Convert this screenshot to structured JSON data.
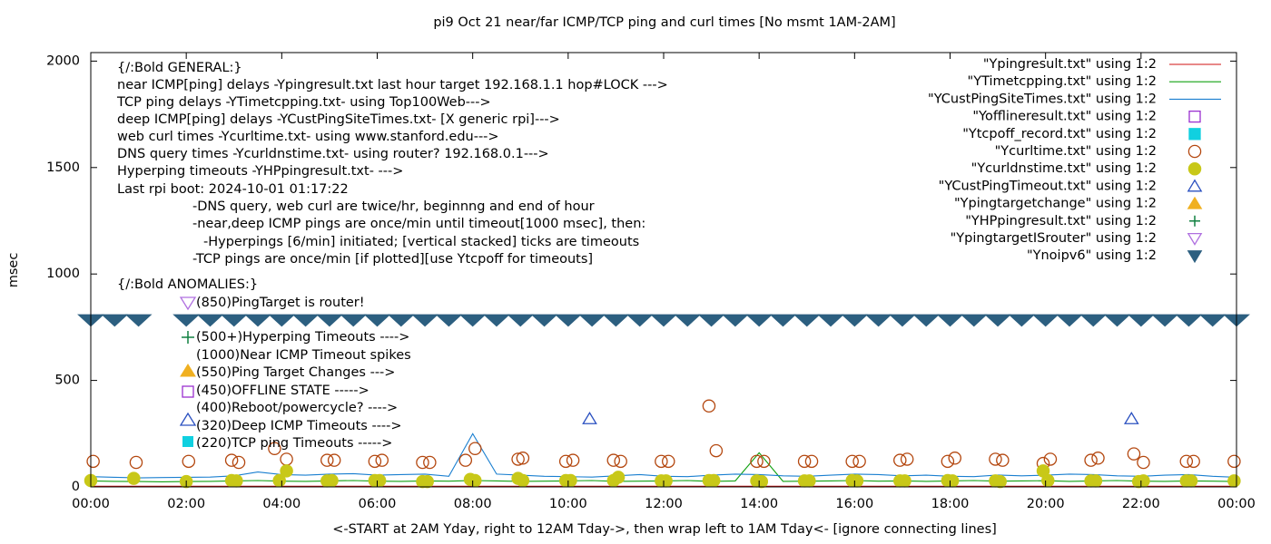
{
  "chart_data": {
    "type": "line",
    "title": "pi9 Oct 21  near/far ICMP/TCP ping and curl times [No msmt 1AM-2AM]",
    "x_label": "<-START at 2AM Yday, right to 12AM Tday->, then wrap left to 1AM Tday<- [ignore connecting lines]",
    "y_label": "msec",
    "xlim": [
      0,
      24
    ],
    "ylim": [
      0,
      2040
    ],
    "xticks": [
      {
        "value": 0,
        "label": "00:00"
      },
      {
        "value": 2,
        "label": "02:00"
      },
      {
        "value": 4,
        "label": "04:00"
      },
      {
        "value": 6,
        "label": "06:00"
      },
      {
        "value": 8,
        "label": "08:00"
      },
      {
        "value": 10,
        "label": "10:00"
      },
      {
        "value": 12,
        "label": "12:00"
      },
      {
        "value": 14,
        "label": "14:00"
      },
      {
        "value": 16,
        "label": "16:00"
      },
      {
        "value": 18,
        "label": "18:00"
      },
      {
        "value": 20,
        "label": "20:00"
      },
      {
        "value": 22,
        "label": "22:00"
      },
      {
        "value": 24,
        "label": "00:00"
      }
    ],
    "yticks": [
      0,
      500,
      1000,
      1500,
      2000
    ],
    "grid": false,
    "legend": "top-right",
    "annotations": [
      "{/:Bold GENERAL:}",
      "near ICMP[ping] delays -Ypingresult.txt last hour target 192.168.1.1 hop#LOCK --->",
      "TCP ping delays -YTimetcpping.txt- using Top100Web--->",
      "deep ICMP[ping] delays -YCustPingSiteTimes.txt- [X generic rpi]--->",
      "web curl times -Ycurltime.txt- using www.stanford.edu--->",
      "DNS query times -Ycurldnstime.txt- using router? 192.168.0.1--->",
      "Hyperping timeouts -YHPpingresult.txt- --->",
      "Last rpi boot: 2024-10-01 01:17:22",
      "-DNS query, web curl are twice/hr, beginnng and end of hour",
      "-near,deep ICMP pings are once/min until timeout[1000 msec], then:",
      "-Hyperpings [6/min] initiated; [vertical stacked] ticks are timeouts",
      "-TCP pings are once/min [if plotted][use Ytcpoff for timeouts]",
      "{/:Bold ANOMALIES:}",
      "(850)PingTarget is router!",
      "(500+)Hyperping Timeouts ---->",
      "(1000)Near ICMP Timeout spikes",
      "(550)Ping Target Changes --->",
      "(450)OFFLINE STATE ----->",
      "(400)Reboot/powercycle? ---->",
      "(320)Deep ICMP Timeouts ---->",
      "(220)TCP ping Timeouts ----->"
    ],
    "series": [
      {
        "name": "\"Ypingresult.txt\" using 1:2",
        "style": "line",
        "color": "#d01010",
        "x": [
          0,
          24
        ],
        "values": [
          3,
          3
        ]
      },
      {
        "name": "\"YTimetcpping.txt\" using 1:2",
        "style": "line",
        "color": "#10a010",
        "x": [
          0,
          0.5,
          1,
          1.5,
          2,
          2.5,
          3,
          3.5,
          4,
          4.5,
          5,
          5.5,
          6,
          6.5,
          7,
          7.5,
          8,
          8.5,
          9,
          9.5,
          10,
          10.5,
          11,
          11.5,
          12,
          12.5,
          13,
          13.5,
          14,
          14.5,
          15,
          15.5,
          16,
          16.5,
          17,
          17.5,
          18,
          18.5,
          19,
          19.5,
          20,
          20.5,
          21,
          21.5,
          22,
          22.5,
          23,
          23.5,
          24
        ],
        "values": [
          28,
          26,
          25,
          24,
          25,
          26,
          28,
          30,
          27,
          26,
          28,
          30,
          27,
          26,
          28,
          27,
          30,
          28,
          26,
          27,
          28,
          30,
          26,
          27,
          28,
          30,
          26,
          28,
          160,
          26,
          27,
          28,
          30,
          27,
          28,
          26,
          28,
          30,
          27,
          28,
          29,
          26,
          28,
          30,
          27,
          26,
          28,
          27,
          25
        ]
      },
      {
        "name": "\"YCustPingSiteTimes.txt\" using 1:2",
        "style": "line",
        "color": "#1a7fd0",
        "x": [
          0,
          0.5,
          1,
          1.5,
          2,
          2.5,
          3,
          3.5,
          4,
          4.5,
          5,
          5.5,
          6,
          6.5,
          7,
          7.5,
          8,
          8.5,
          9,
          9.5,
          10,
          10.5,
          11,
          11.5,
          12,
          12.5,
          13,
          13.5,
          14,
          14.5,
          15,
          15.5,
          16,
          16.5,
          17,
          17.5,
          18,
          18.5,
          19,
          19.5,
          20,
          20.5,
          21,
          21.5,
          22,
          22.5,
          23,
          23.5,
          24
        ],
        "values": [
          48,
          45,
          42,
          44,
          45,
          46,
          52,
          70,
          58,
          55,
          60,
          62,
          55,
          58,
          60,
          50,
          250,
          60,
          55,
          50,
          48,
          46,
          52,
          58,
          50,
          48,
          55,
          60,
          58,
          52,
          50,
          55,
          60,
          58,
          52,
          55,
          50,
          48,
          56,
          52,
          55,
          60,
          58,
          52,
          50,
          55,
          58,
          50,
          45
        ]
      },
      {
        "name": "\"Yofflineresult.txt\" using 1:2",
        "style": "marker",
        "marker": "square",
        "filled": false,
        "color": "#9a30d0",
        "x": [],
        "values": []
      },
      {
        "name": "\"Ytcpoff_record.txt\" using 1:2",
        "style": "marker",
        "marker": "square",
        "filled": true,
        "color": "#10d0e0",
        "x": [],
        "values": []
      },
      {
        "name": "\"Ycurltime.txt\" using 1:2",
        "style": "marker",
        "marker": "circle",
        "filled": false,
        "color": "#b44810",
        "x": [
          0.05,
          0.95,
          2.05,
          2.95,
          3.1,
          3.85,
          4.1,
          4.95,
          5.1,
          5.95,
          6.1,
          6.95,
          7.1,
          7.85,
          8.05,
          8.95,
          9.05,
          9.95,
          10.1,
          10.95,
          11.1,
          11.95,
          12.1,
          12.95,
          13.1,
          13.95,
          14.1,
          14.95,
          15.1,
          15.95,
          16.1,
          16.95,
          17.1,
          17.95,
          18.1,
          18.95,
          19.1,
          19.95,
          20.1,
          20.95,
          21.1,
          21.85,
          22.05,
          22.95,
          23.1,
          23.95
        ],
        "values": [
          120,
          115,
          120,
          125,
          115,
          180,
          130,
          125,
          125,
          120,
          125,
          115,
          115,
          125,
          180,
          130,
          135,
          120,
          125,
          125,
          120,
          120,
          120,
          380,
          170,
          120,
          120,
          120,
          120,
          120,
          120,
          125,
          130,
          120,
          135,
          130,
          125,
          110,
          130,
          125,
          135,
          155,
          115,
          120,
          120,
          120
        ]
      },
      {
        "name": "\"Ycurldnstime.txt\" using 1:2",
        "style": "marker",
        "marker": "circle",
        "filled": true,
        "color": "#c8c818",
        "x": [
          0,
          0.9,
          2,
          2.95,
          3.05,
          3.95,
          4.1,
          4.95,
          5.05,
          5.95,
          6.05,
          6.95,
          7.05,
          7.95,
          8.05,
          8.95,
          9.05,
          9.95,
          10.05,
          10.95,
          11.05,
          11.95,
          12.05,
          12.95,
          13.05,
          13.95,
          14.05,
          14.95,
          15.05,
          15.95,
          16.05,
          16.95,
          17.05,
          17.95,
          18.05,
          18.95,
          19.05,
          19.95,
          20.05,
          20.95,
          21.05,
          21.95,
          22.05,
          22.95,
          23.05,
          23.95
        ],
        "values": [
          30,
          40,
          25,
          30,
          28,
          30,
          75,
          28,
          30,
          30,
          30,
          25,
          25,
          35,
          30,
          40,
          30,
          30,
          30,
          30,
          45,
          28,
          28,
          30,
          30,
          28,
          25,
          28,
          28,
          30,
          28,
          28,
          28,
          30,
          28,
          28,
          25,
          75,
          30,
          28,
          28,
          25,
          28,
          28,
          28,
          28
        ]
      },
      {
        "name": "\"YCustPingTimeout.txt\" using 1:2",
        "style": "marker",
        "marker": "triangle",
        "filled": false,
        "color": "#2a50c0",
        "x": [
          10.45,
          21.8
        ],
        "values": [
          320,
          320
        ]
      },
      {
        "name": "\"Ypingtargetchange\" using 1:2",
        "style": "marker",
        "marker": "triangle",
        "filled": true,
        "color": "#f0b020",
        "x": [],
        "values": []
      },
      {
        "name": "\"YHPpingresult.txt\" using 1:2",
        "style": "marker",
        "marker": "plus",
        "filled": false,
        "color": "#108040",
        "x": [],
        "values": []
      },
      {
        "name": "\"YpingtargetISrouter\" using 1:2",
        "style": "marker",
        "marker": "tri-down",
        "filled": false,
        "color": "#b070e0",
        "x": [],
        "values": []
      },
      {
        "name": "\"Ynoipv6\" using 1:2",
        "style": "marker",
        "marker": "tri-down",
        "filled": true,
        "color": "#2c5f80",
        "x": [
          0,
          0.5,
          1,
          2,
          2.5,
          3,
          3.5,
          4,
          4.5,
          5,
          5.5,
          6,
          6.5,
          7,
          7.5,
          8,
          8.5,
          9,
          9.5,
          10,
          10.5,
          11,
          11.5,
          12,
          12.5,
          13,
          13.5,
          14,
          14.5,
          15,
          15.5,
          16,
          16.5,
          17,
          17.5,
          18,
          18.5,
          19,
          19.5,
          20,
          20.5,
          21,
          21.5,
          22,
          22.5,
          23,
          23.5,
          24
        ],
        "values": [
          780,
          780,
          780,
          780,
          780,
          780,
          780,
          780,
          780,
          780,
          780,
          780,
          780,
          780,
          780,
          780,
          780,
          780,
          780,
          780,
          780,
          780,
          780,
          780,
          780,
          780,
          780,
          780,
          780,
          780,
          780,
          780,
          780,
          780,
          780,
          780,
          780,
          780,
          780,
          780,
          780,
          780,
          780,
          780,
          780,
          780,
          780,
          780
        ]
      }
    ]
  }
}
